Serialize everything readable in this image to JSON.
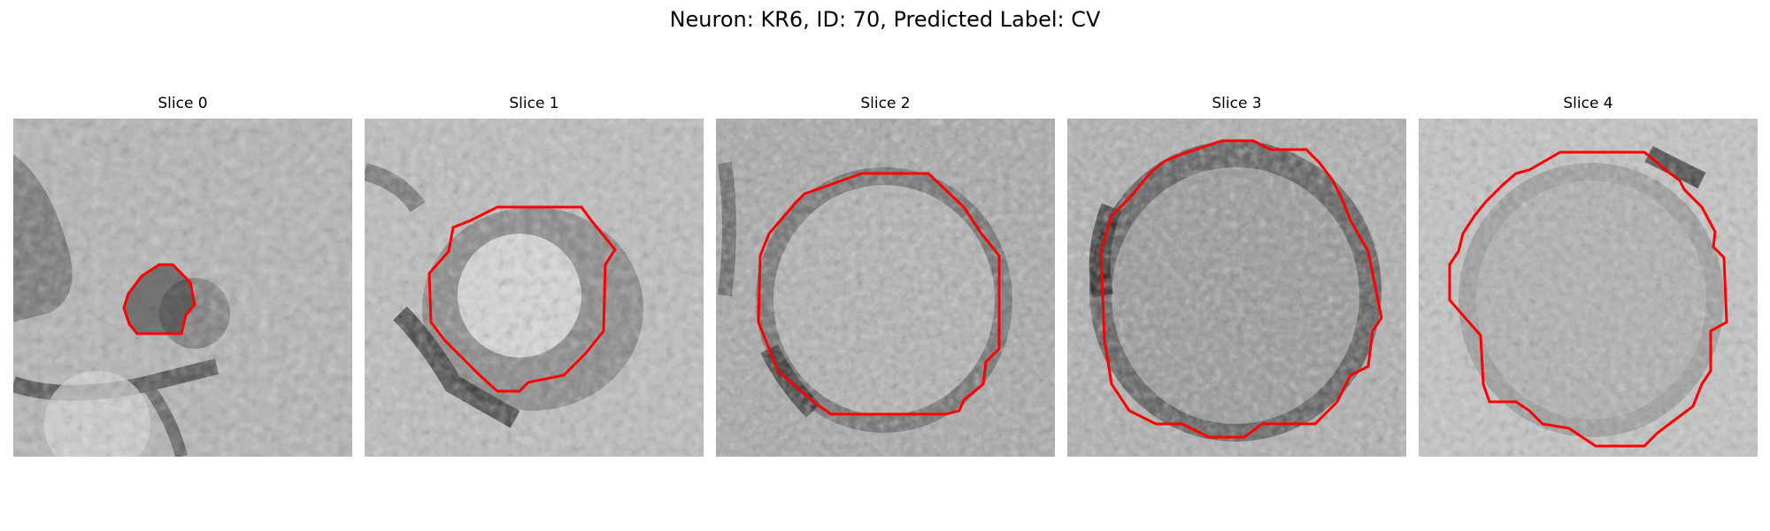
{
  "figure": {
    "title": "Neuron: KR6, ID: 70, Predicted Label: CV"
  },
  "colors": {
    "contour": "#ff0000"
  },
  "panels": [
    {
      "title": "Slice 0"
    },
    {
      "title": "Slice 1"
    },
    {
      "title": "Slice 2"
    },
    {
      "title": "Slice 3"
    },
    {
      "title": "Slice 4"
    }
  ]
}
